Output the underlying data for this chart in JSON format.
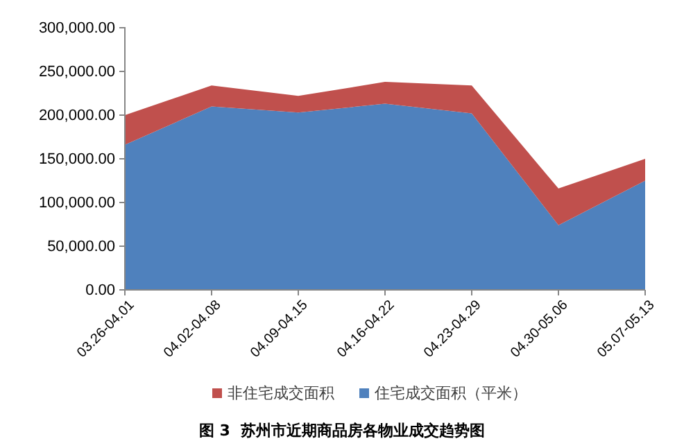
{
  "chart_data": {
    "type": "area",
    "title": "图 3  苏州市近期商品房各物业成交趋势图",
    "stacked": true,
    "legend": "bottom",
    "categories": [
      "03.26-04.01",
      "04.02-04.08",
      "04.09-04.15",
      "04.16-04.22",
      "04.23-04.29",
      "04.30-05.06",
      "05.07-05.13"
    ],
    "series": [
      {
        "name": "住宅成交面积（平米）",
        "color": "#4f81bd",
        "values": [
          166000,
          210000,
          203000,
          213000,
          202000,
          74000,
          125000
        ]
      },
      {
        "name": "非住宅成交面积",
        "color": "#c0504d",
        "values": [
          34000,
          24000,
          19000,
          25000,
          32000,
          42000,
          25000
        ]
      }
    ],
    "ylim": [
      0,
      300000
    ],
    "yticks": [
      {
        "value": 0,
        "label": "0.00"
      },
      {
        "value": 50000,
        "label": "50,000.00"
      },
      {
        "value": 100000,
        "label": "100,000.00"
      },
      {
        "value": 150000,
        "label": "150,000.00"
      },
      {
        "value": 200000,
        "label": "200,000.00"
      },
      {
        "value": 250000,
        "label": "250,000.00"
      },
      {
        "value": 300000,
        "label": "300,000.00"
      }
    ],
    "grid": false
  }
}
